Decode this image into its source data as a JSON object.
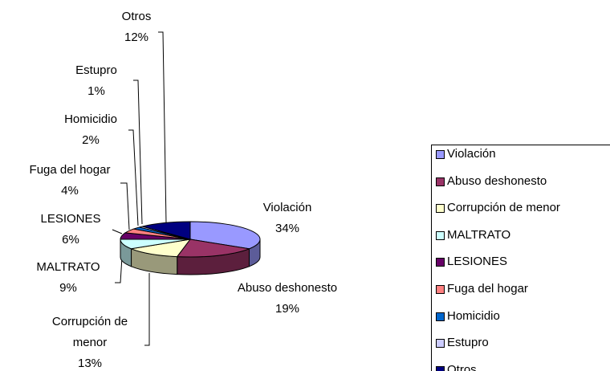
{
  "chart_data": {
    "type": "pie3d",
    "categories": [
      "Violación",
      "Abuso deshonesto",
      "Corrupción de menor",
      "MALTRATO",
      "LESIONES",
      "Fuga del hogar",
      "Homicidio",
      "Estupro",
      "Otros"
    ],
    "values": [
      34,
      19,
      13,
      9,
      6,
      4,
      2,
      1,
      12
    ],
    "value_labels": [
      "34%",
      "19%",
      "13%",
      "9%",
      "6%",
      "4%",
      "2%",
      "1%",
      "12%"
    ],
    "colors": [
      "#9999ff",
      "#993366",
      "#ffffcc",
      "#ccffff",
      "#660066",
      "#ff8080",
      "#0066cc",
      "#ccccff",
      "#000080"
    ],
    "legend": "right"
  }
}
